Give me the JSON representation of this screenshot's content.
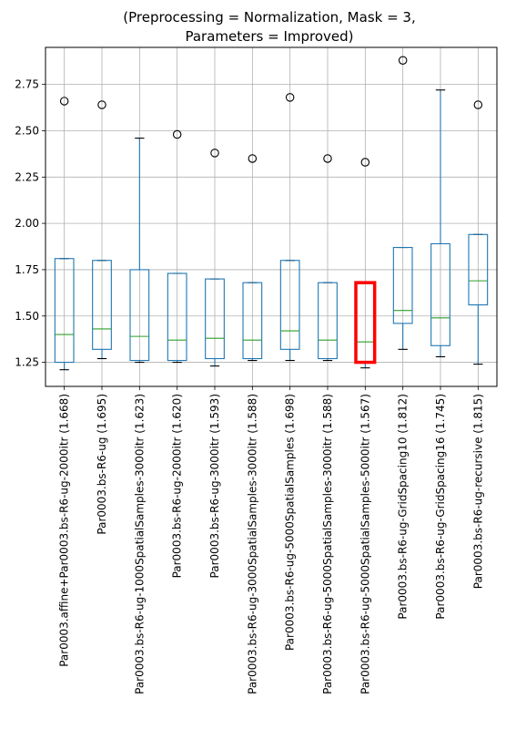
{
  "chart_data": {
    "type": "boxplot",
    "title_line1": "(Preprocessing = Normalization, Mask = 3,",
    "title_line2": "Parameters = Improved)",
    "ylim": [
      1.12,
      2.95
    ],
    "yticks": [
      1.25,
      1.5,
      1.75,
      2.0,
      2.25,
      2.5,
      2.75
    ],
    "ytick_labels": [
      "1.25",
      "1.50",
      "1.75",
      "2.00",
      "2.25",
      "2.50",
      "2.75"
    ],
    "grid": true,
    "colors": {
      "box": "#1f77b4",
      "median": "#2ca02c",
      "highlight": "#ff0000",
      "grid": "#b0b0b0"
    },
    "highlight_index": 8,
    "boxes": [
      {
        "label": "Par0003.affine+Par0003.bs-R6-ug-2000itr (1.668)",
        "whislo": 1.21,
        "q1": 1.25,
        "med": 1.4,
        "q3": 1.81,
        "whishi": 1.81,
        "fliers": [
          2.66
        ]
      },
      {
        "label": "Par0003.bs-R6-ug (1.695)",
        "whislo": 1.27,
        "q1": 1.32,
        "med": 1.43,
        "q3": 1.8,
        "whishi": 1.8,
        "fliers": [
          2.64
        ]
      },
      {
        "label": "Par0003.bs-R6-ug-1000SpatialSamples-3000itr (1.623)",
        "whislo": 1.25,
        "q1": 1.26,
        "med": 1.39,
        "q3": 1.75,
        "whishi": 2.46,
        "fliers": []
      },
      {
        "label": "Par0003.bs-R6-ug-2000itr (1.620)",
        "whislo": 1.25,
        "q1": 1.26,
        "med": 1.37,
        "q3": 1.73,
        "whishi": 1.73,
        "fliers": [
          2.48
        ]
      },
      {
        "label": "Par0003.bs-R6-ug-3000itr (1.593)",
        "whislo": 1.23,
        "q1": 1.27,
        "med": 1.38,
        "q3": 1.7,
        "whishi": 1.7,
        "fliers": [
          2.38
        ]
      },
      {
        "label": "Par0003.bs-R6-ug-3000SpatialSamples-3000itr (1.588)",
        "whislo": 1.26,
        "q1": 1.27,
        "med": 1.37,
        "q3": 1.68,
        "whishi": 1.68,
        "fliers": [
          2.35
        ]
      },
      {
        "label": "Par0003.bs-R6-ug-5000SpatialSamples (1.698)",
        "whislo": 1.26,
        "q1": 1.32,
        "med": 1.42,
        "q3": 1.8,
        "whishi": 1.8,
        "fliers": [
          2.68
        ]
      },
      {
        "label": "Par0003.bs-R6-ug-5000SpatialSamples-3000itr (1.588)",
        "whislo": 1.26,
        "q1": 1.27,
        "med": 1.37,
        "q3": 1.68,
        "whishi": 1.68,
        "fliers": [
          2.35
        ]
      },
      {
        "label": "Par0003.bs-R6-ug-5000SpatialSamples-5000itr (1.567)",
        "whislo": 1.22,
        "q1": 1.25,
        "med": 1.36,
        "q3": 1.68,
        "whishi": 1.68,
        "fliers": [
          2.33
        ]
      },
      {
        "label": "Par0003.bs-R6-ug-GridSpacing10 (1.812)",
        "whislo": 1.32,
        "q1": 1.46,
        "med": 1.53,
        "q3": 1.87,
        "whishi": 1.87,
        "fliers": [
          2.88
        ]
      },
      {
        "label": "Par0003.bs-R6-ug-GridSpacing16 (1.745)",
        "whislo": 1.28,
        "q1": 1.34,
        "med": 1.49,
        "q3": 1.89,
        "whishi": 2.72,
        "fliers": []
      },
      {
        "label": "Par0003.bs-R6-ug-recursive (1.815)",
        "whislo": 1.24,
        "q1": 1.56,
        "med": 1.69,
        "q3": 1.94,
        "whishi": 1.94,
        "fliers": [
          2.64
        ]
      }
    ]
  }
}
